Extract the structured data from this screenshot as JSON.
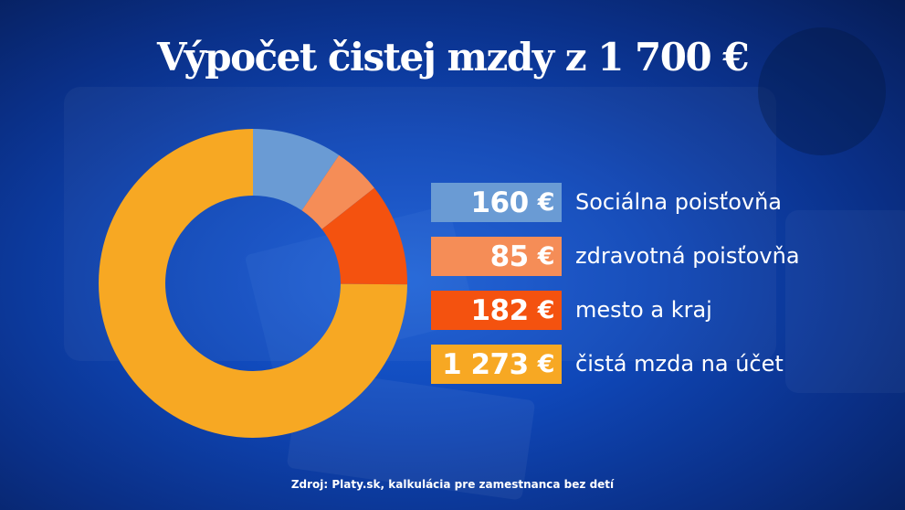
{
  "title": "Výpočet čistej mzdy z 1 700 €",
  "currency": "€",
  "source": "Zdroj: Platy.sk, kalkulácia pre zamestnanca bez detí",
  "chart_data": {
    "type": "pie",
    "variant": "donut",
    "title": "Výpočet čistej mzdy z 1 700 €",
    "total": 1700,
    "categories": [
      "Sociálna poisťovňa",
      "zdravotná poisťovňa",
      "mesto a kraj",
      "čistá mzda na účet"
    ],
    "values": [
      160,
      85,
      182,
      1273
    ],
    "value_labels": [
      "160",
      "85",
      "182",
      "1 273"
    ],
    "colors": [
      "#6a9bd4",
      "#f58d57",
      "#f4520f",
      "#f7a823"
    ],
    "legend": "right"
  }
}
